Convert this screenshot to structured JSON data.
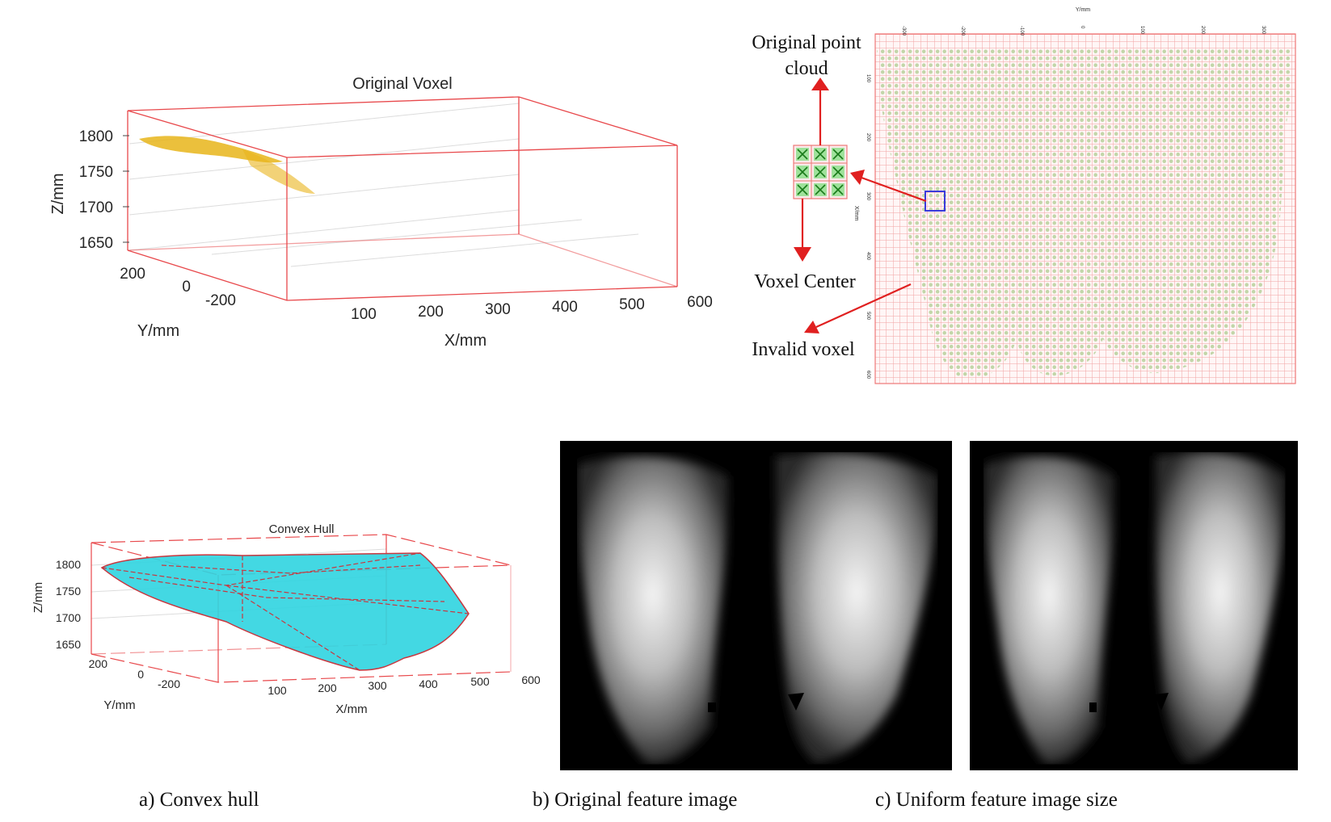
{
  "voxel_plot": {
    "title": "Original Voxel",
    "z_label": "Z/mm",
    "y_label": "Y/mm",
    "x_label": "X/mm",
    "z_ticks": [
      "1800",
      "1750",
      "1700",
      "1650"
    ],
    "y_ticks": [
      "200",
      "0",
      "-200"
    ],
    "x_ticks": [
      "100",
      "200",
      "300",
      "400",
      "500",
      "600"
    ]
  },
  "grid_view": {
    "top_label": "Y/mm",
    "top_ticks": [
      "-300",
      "-200",
      "-100",
      "0",
      "100",
      "200",
      "300"
    ],
    "side_label": "X/mm",
    "side_ticks": [
      "100",
      "200",
      "300",
      "400",
      "500",
      "600"
    ],
    "label_point_cloud_line1": "Original point",
    "label_point_cloud_line2": "cloud",
    "label_voxel_center": "Voxel Center",
    "label_invalid_voxel": "Invalid voxel"
  },
  "hull_plot": {
    "title": "Convex Hull",
    "z_label": "Z/mm",
    "y_label": "Y/mm",
    "x_label": "X/mm",
    "z_ticks": [
      "1800",
      "1750",
      "1700",
      "1650"
    ],
    "y_ticks": [
      "200",
      "0",
      "-200"
    ],
    "x_ticks": [
      "100",
      "200",
      "300",
      "400",
      "500",
      "600"
    ]
  },
  "captions": {
    "a": "a) Convex hull",
    "b": "b) Original feature image",
    "c": "c)  Uniform feature image size"
  },
  "colors": {
    "box_red": "#e8484b",
    "hull_cyan": "#2fd4e0",
    "grid_red": "#f4a0a0",
    "cloud_green": "#b8cfa0",
    "arrow_red": "#e02020"
  }
}
